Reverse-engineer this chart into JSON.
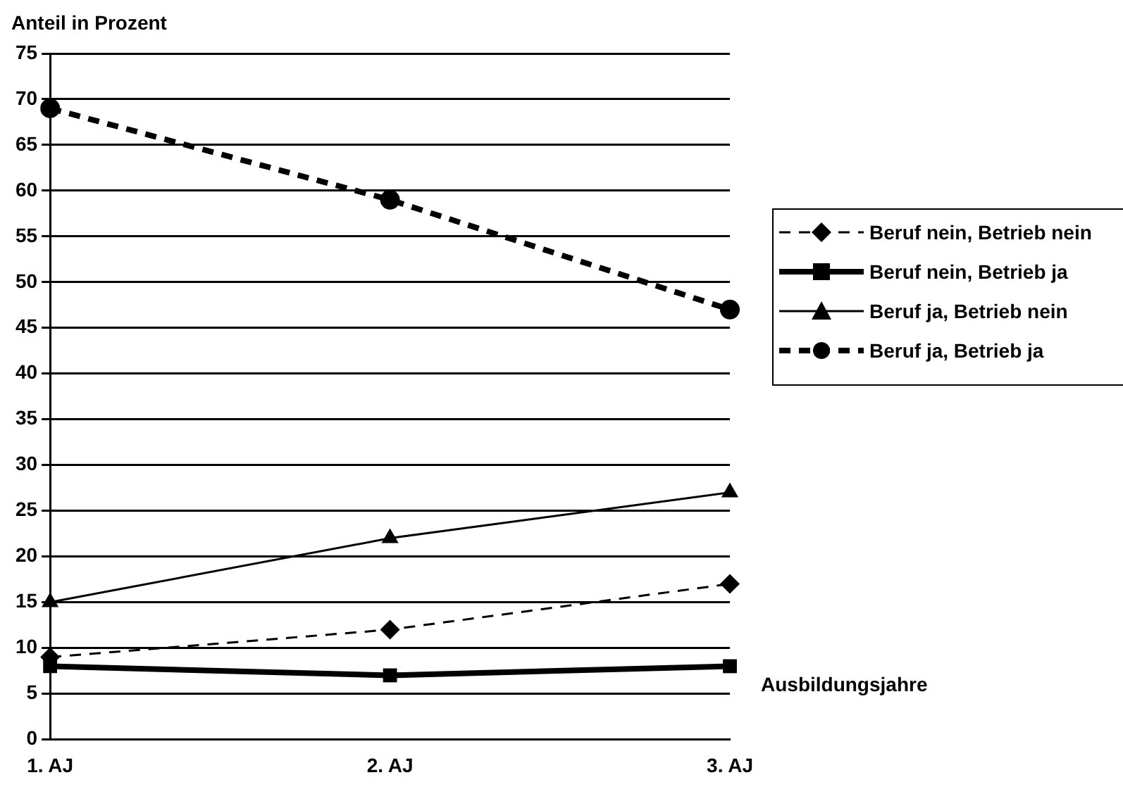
{
  "chart_data": {
    "type": "line",
    "ylabel": "Anteil in Prozent",
    "xlabel": "Ausbildungsjahre",
    "categories": [
      "1. AJ",
      "2. AJ",
      "3. AJ"
    ],
    "ylim": [
      0,
      75
    ],
    "yticks": [
      0,
      5,
      10,
      15,
      20,
      25,
      30,
      35,
      40,
      45,
      50,
      55,
      60,
      65,
      70,
      75
    ],
    "grid": "y",
    "legend": "right",
    "series": [
      {
        "name": "Beruf nein, Betrieb nein",
        "color": "#000000",
        "values": [
          9,
          12,
          17
        ],
        "marker": "diamond",
        "line_style": "dashed"
      },
      {
        "name": "Beruf nein, Betrieb ja",
        "color": "#000000",
        "values": [
          8,
          7,
          8
        ],
        "marker": "square",
        "line_style": "solid"
      },
      {
        "name": "Beruf ja, Betrieb nein",
        "color": "#000000",
        "values": [
          15,
          22,
          27
        ],
        "marker": "triangle",
        "line_style": "solid"
      },
      {
        "name": "Beruf ja, Betrieb ja",
        "color": "#000000",
        "values": [
          69,
          59,
          47
        ],
        "marker": "circle",
        "line_style": "dashed"
      }
    ]
  }
}
